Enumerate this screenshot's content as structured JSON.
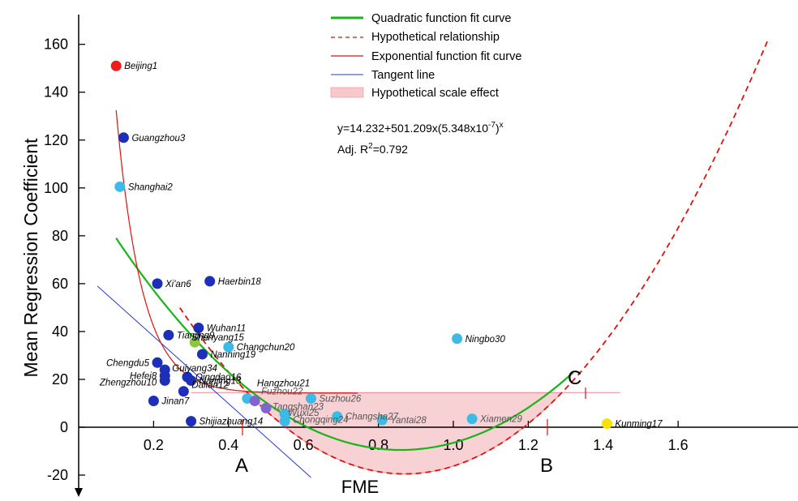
{
  "chart_data": {
    "type": "scatter",
    "xlabel": "FME",
    "ylabel": "Mean Regression Coefficient",
    "xlim": [
      0,
      1.95
    ],
    "ylim": [
      -25,
      165
    ],
    "xticks": [
      "0.2",
      "0.4",
      "0.6",
      "0.8",
      "1.0",
      "1.2",
      "1.4",
      "1.6"
    ],
    "yticks": [
      "-20",
      "0",
      "20",
      "40",
      "60",
      "80",
      "100",
      "120",
      "140",
      "160"
    ],
    "points": [
      {
        "label": "Beijing1",
        "x": 0.1,
        "y": 151,
        "color": "#ee1c1c"
      },
      {
        "label": "Guangzhou3",
        "x": 0.12,
        "y": 121,
        "color": "#1d2fb8"
      },
      {
        "label": "Shanghai2",
        "x": 0.11,
        "y": 100.5,
        "color": "#3bbbe6"
      },
      {
        "label": "Xi'an6",
        "x": 0.21,
        "y": 60,
        "color": "#1d2fb8"
      },
      {
        "label": "Haerbin18",
        "x": 0.35,
        "y": 61,
        "color": "#1d2fb8"
      },
      {
        "label": "Wuhan11",
        "x": 0.32,
        "y": 41.5,
        "color": "#1d2fb8"
      },
      {
        "label": "Tianjing9",
        "x": 0.24,
        "y": 38.5,
        "color": "#1d2fb8"
      },
      {
        "label": "Shenyang15",
        "x": 0.31,
        "y": 35.5,
        "color": "#8dc63f"
      },
      {
        "label": "Changchun20",
        "x": 0.4,
        "y": 33.5,
        "color": "#3bbbe6"
      },
      {
        "label": "Nanning19",
        "x": 0.33,
        "y": 30.5,
        "color": "#1d2fb8"
      },
      {
        "label": "Chengdu5",
        "x": 0.21,
        "y": 27,
        "color": "#1d2fb8"
      },
      {
        "label": "Guiyang34",
        "x": 0.23,
        "y": 24,
        "color": "#1d2fb8"
      },
      {
        "label": "Hefei8",
        "x": 0.23,
        "y": 21.5,
        "color": "#1d2fb8"
      },
      {
        "label": "Zhengzhou10",
        "x": 0.23,
        "y": 19.5,
        "color": "#1d2fb8"
      },
      {
        "label": "Qingdao16",
        "x": 0.29,
        "y": 21,
        "color": "#1d2fb8"
      },
      {
        "label": "Nanjing13",
        "x": 0.3,
        "y": 19.5,
        "color": "#1d2fb8"
      },
      {
        "label": "Dalian12",
        "x": 0.28,
        "y": 15,
        "color": "#1d2fb8"
      },
      {
        "label": "Jinan7",
        "x": 0.2,
        "y": 11,
        "color": "#1d2fb8"
      },
      {
        "label": "Shijiazhuang14",
        "x": 0.3,
        "y": 2.5,
        "color": "#1d2fb8"
      },
      {
        "label": "Hangzhou21",
        "x": 0.45,
        "y": 12,
        "color": "#3bbbe6"
      },
      {
        "label": "Fuzhou22",
        "x": 0.47,
        "y": 11,
        "color": "#8066cc"
      },
      {
        "label": "Tangshan23",
        "x": 0.5,
        "y": 8,
        "color": "#8066cc"
      },
      {
        "label": "Wuxi25",
        "x": 0.55,
        "y": 5.5,
        "color": "#3bbbe6"
      },
      {
        "label": "Chongqing24",
        "x": 0.55,
        "y": 2.5,
        "color": "#3bbbe6"
      },
      {
        "label": "Suzhou26",
        "x": 0.62,
        "y": 12,
        "color": "#3bbbe6"
      },
      {
        "label": "Changsha27",
        "x": 0.69,
        "y": 4.5,
        "color": "#3bbbe6"
      },
      {
        "label": "Yantai28",
        "x": 0.81,
        "y": 3,
        "color": "#3bbbe6"
      },
      {
        "label": "Ningbo30",
        "x": 1.01,
        "y": 37,
        "color": "#3bbbe6"
      },
      {
        "label": "Xiamen29",
        "x": 1.05,
        "y": 3.5,
        "color": "#3bbbe6"
      },
      {
        "label": "Kunming17",
        "x": 1.41,
        "y": 1.5,
        "color": "#f5e20a"
      }
    ],
    "legend": [
      {
        "label": "Quadratic function fit curve",
        "color": "#18b418",
        "style": "solid-thick"
      },
      {
        "label": "Hypothetical relationship",
        "color": "#e01010",
        "style": "dashed"
      },
      {
        "label": "Exponential function fit curve",
        "color": "#e01010",
        "style": "solid-thin"
      },
      {
        "label": "Tangent line",
        "color": "#2a3bd6",
        "style": "solid-thin"
      },
      {
        "label": "Hypothetical scale effect",
        "color": "#f7c9cc",
        "style": "fill"
      }
    ],
    "annotations": {
      "equation_main": "y=14.232+501.209x(5.348x10",
      "equation_exp": "-7",
      "equation_tail": ")",
      "equation_x": "x",
      "r2_prefix": "Adj. R",
      "r2_sup": "2",
      "r2_suffix": "=0.792",
      "letter_a": "A",
      "letter_b": "B",
      "letter_c": "C"
    },
    "exponential_fit": {
      "a": 14.232,
      "b": 501.209,
      "base": 5.348e-07
    },
    "quadratic_fit": {
      "x_range": [
        0.1,
        1.33
      ],
      "vertex": [
        0.86,
        -9.5
      ],
      "y_at_0.1": 79
    },
    "hypothetical_curve": {
      "x_range": [
        0.27,
        1.84
      ],
      "vertex": [
        0.87,
        -19.5
      ],
      "y_end": 162
    },
    "tangent_line": {
      "x_range": [
        0.05,
        0.62
      ],
      "y_at_0.05": 59,
      "y_at_0.62": -21
    },
    "scale_effect": {
      "y_top": 14.5,
      "x_left": 0.45,
      "x_right": 1.445,
      "x_b": 1.33
    },
    "colors": {
      "axis": "#000000",
      "shade": "#f7c9cc"
    }
  }
}
